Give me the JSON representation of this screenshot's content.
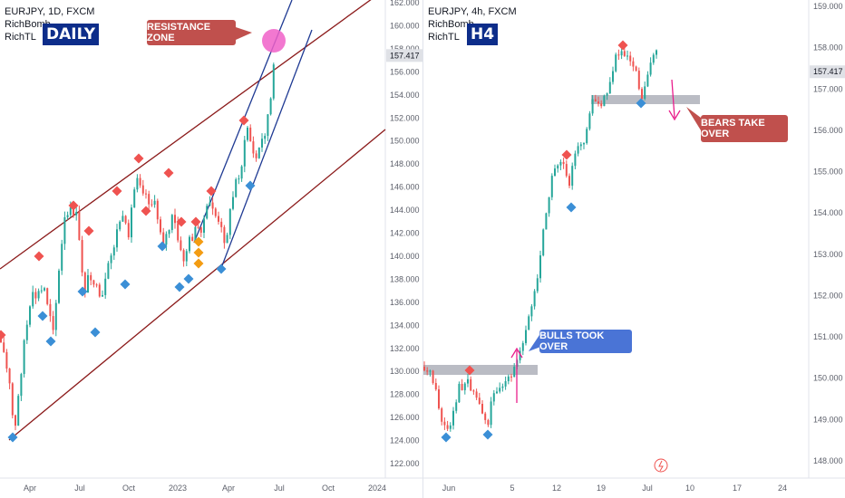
{
  "colors": {
    "channel": "#8b1a1a",
    "trendline": "#1f3a93",
    "bull_candle": "#26a69a",
    "bear_candle": "#ef5350",
    "high_marker": "#ef5350",
    "low_marker": "#3b8fd6",
    "orange_marker": "#f39c12",
    "zone_gray": "#b2b5be",
    "resistance_circle": "#f060c8",
    "callout_red": "#c0504d",
    "callout_blue": "#4a74d6",
    "arrow_pink": "#e91e8c",
    "price_label_bg": "#dfe1e6",
    "timeframe_bg": "#0d2d8a"
  },
  "left_chart": {
    "symbol": "EURJPY, 1D, FXCM",
    "indicators": [
      "RichBomb",
      "RichTL"
    ],
    "timeframe_badge": "DAILY",
    "callout": "RESISTANCE ZONE",
    "current_price": "157.417",
    "y_ticks": [
      "162.000",
      "160.000",
      "158.000",
      "156.000",
      "154.000",
      "152.000",
      "150.000",
      "148.000",
      "146.000",
      "144.000",
      "142.000",
      "140.000",
      "138.000",
      "136.000",
      "134.000",
      "132.000",
      "130.000",
      "128.000",
      "126.000",
      "124.000",
      "122.000"
    ],
    "x_ticks": [
      "Apr",
      "Jul",
      "Oct",
      "2023",
      "Apr",
      "Jul",
      "Oct",
      "2024"
    ]
  },
  "right_chart": {
    "symbol": "EURJPY, 4h, FXCM",
    "indicators": [
      "RichBomb",
      "RichTL"
    ],
    "timeframe_badge": "H4",
    "callout_bulls": "BULLS TOOK OVER",
    "callout_bears": "BEARS TAKE OVER",
    "current_price": "157.417",
    "y_ticks": [
      "159.000",
      "158.000",
      "157.000",
      "156.000",
      "155.000",
      "154.000",
      "153.000",
      "152.000",
      "151.000",
      "150.000",
      "149.000",
      "148.000"
    ],
    "x_ticks": [
      "Jun",
      "5",
      "12",
      "19",
      "Jul",
      "10",
      "17",
      "24"
    ],
    "event_icon": "lightning-icon"
  },
  "chart_data": [
    {
      "type": "candlestick",
      "title": "EURJPY, 1D, FXCM",
      "ylim": [
        121.5,
        162.5
      ],
      "x_ticks": [
        "Apr",
        "Jul",
        "Oct",
        "2023",
        "Apr",
        "Jul",
        "Oct",
        "2024"
      ],
      "y_ticks": [
        162,
        160,
        158,
        156,
        154,
        152,
        150,
        148,
        146,
        144,
        142,
        140,
        138,
        136,
        134,
        132,
        130,
        128,
        126,
        124,
        122
      ],
      "last_price": 157.417,
      "annotations": [
        "DAILY",
        "RESISTANCE ZONE"
      ]
    },
    {
      "type": "candlestick",
      "title": "EURJPY, 4h, FXCM",
      "ylim": [
        147.6,
        159.2
      ],
      "x_ticks": [
        "Jun",
        "5",
        "12",
        "19",
        "Jul",
        "10",
        "17",
        "24"
      ],
      "y_ticks": [
        159,
        158,
        157,
        156,
        155,
        154,
        153,
        152,
        151,
        150,
        149,
        148
      ],
      "last_price": 157.417,
      "annotations": [
        "H4",
        "BULLS TOOK OVER",
        "BEARS TAKE OVER"
      ]
    }
  ]
}
